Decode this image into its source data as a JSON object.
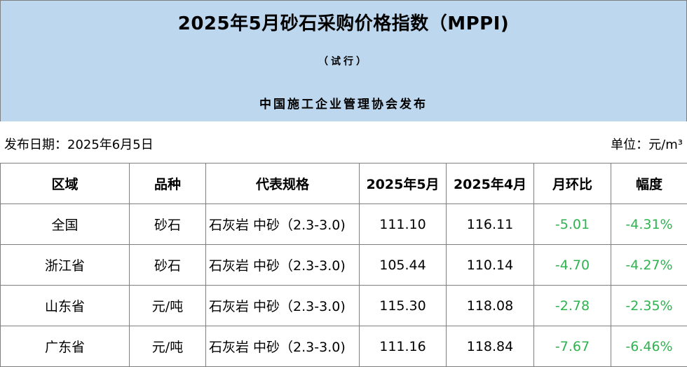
{
  "banner": {
    "title": "2025年5月砂石采购价格指数（MPPI)",
    "subtitle": "（试行）",
    "publisher": "中国施工企业管理协会发布"
  },
  "info": {
    "release_date": "发布日期：2025年6月5日",
    "unit": "单位：元/m³"
  },
  "table": {
    "headers": [
      "区域",
      "品种",
      "代表规格",
      "2025年5月",
      "2025年4月",
      "月环比",
      "幅度"
    ],
    "rows": [
      {
        "region": "全国",
        "variety": "砂石",
        "spec": "石灰岩 中砂（2.3-3.0)",
        "may": "111.10",
        "april": "116.11",
        "mom": "-5.01",
        "range": "-4.31%"
      },
      {
        "region": "浙江省",
        "variety": "砂石",
        "spec": "石灰岩 中砂（2.3-3.0)",
        "may": "105.44",
        "april": "110.14",
        "mom": "-4.70",
        "range": "-4.27%"
      },
      {
        "region": "山东省",
        "variety": "元/吨",
        "spec": "石灰岩 中砂（2.3-3.0)",
        "may": "115.30",
        "april": "118.08",
        "mom": "-2.78",
        "range": "-2.35%"
      },
      {
        "region": "广东省",
        "variety": "元/吨",
        "spec": "石灰岩 中砂（2.3-3.0)",
        "may": "111.16",
        "april": "118.84",
        "mom": "-7.67",
        "range": "-6.46%"
      }
    ]
  },
  "colors": {
    "banner_bg": "#bdd7ee",
    "negative_text": "#2eb34f",
    "border": "#7f7f7f"
  }
}
